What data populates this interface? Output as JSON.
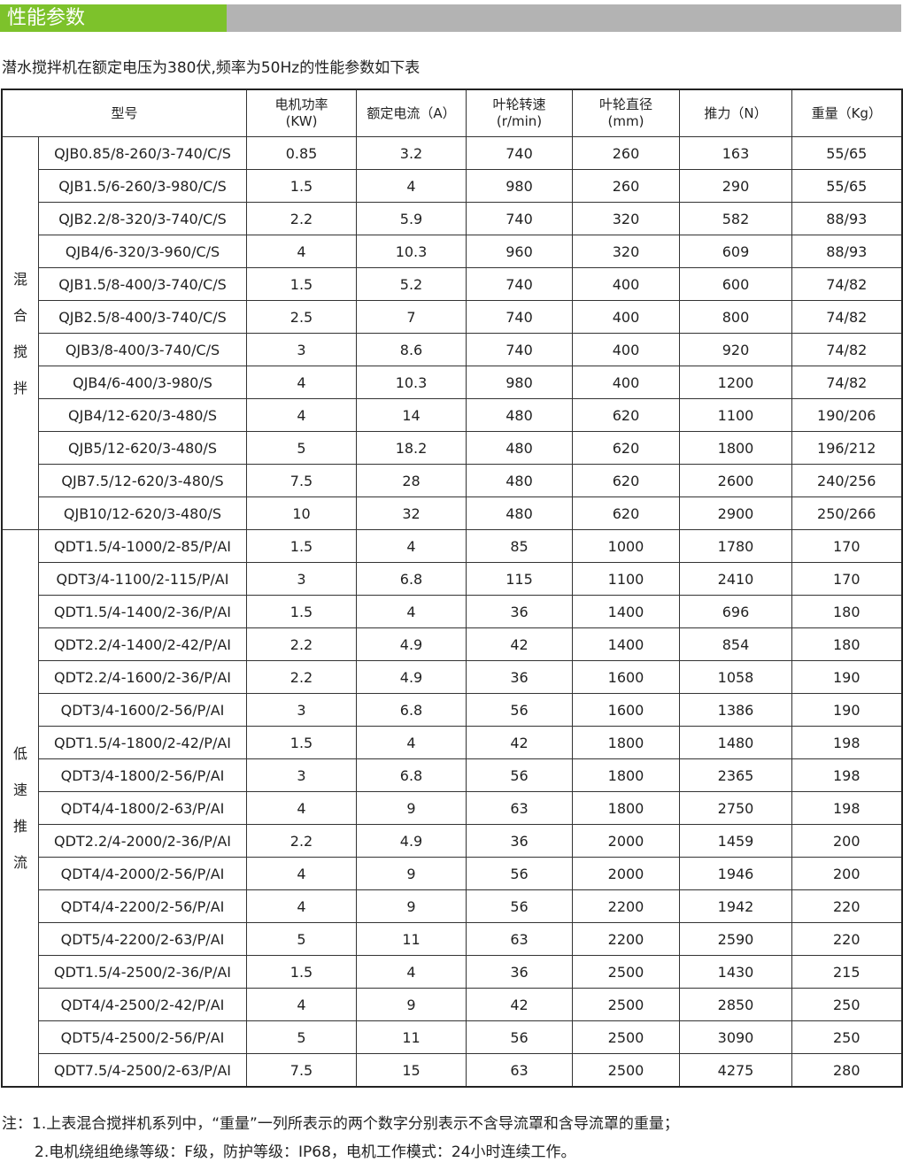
{
  "section_title": "性能参数",
  "intro": "潜水搅拌机在额定电压为380伏,频率为50Hz的性能参数如下表",
  "colors": {
    "title_green": "#7dc22b",
    "title_gray": "#b3b3b3"
  },
  "table": {
    "headers": {
      "model": "型号",
      "power": [
        "电机功率",
        "(KW)"
      ],
      "current": "额定电流（A）",
      "speed": [
        "叶轮转速",
        "(r/min)"
      ],
      "diameter": [
        "叶轮直径",
        "(mm)"
      ],
      "thrust": "推力（N）",
      "weight": "重量（Kg）"
    },
    "groups": [
      {
        "label": [
          "混",
          "合",
          "搅",
          "拌"
        ],
        "rows": [
          [
            "QJB0.85/8-260/3-740/C/S",
            "0.85",
            "3.2",
            "740",
            "260",
            "163",
            "55/65"
          ],
          [
            "QJB1.5/6-260/3-980/C/S",
            "1.5",
            "4",
            "980",
            "260",
            "290",
            "55/65"
          ],
          [
            "QJB2.2/8-320/3-740/C/S",
            "2.2",
            "5.9",
            "740",
            "320",
            "582",
            "88/93"
          ],
          [
            "QJB4/6-320/3-960/C/S",
            "4",
            "10.3",
            "960",
            "320",
            "609",
            "88/93"
          ],
          [
            "QJB1.5/8-400/3-740/C/S",
            "1.5",
            "5.2",
            "740",
            "400",
            "600",
            "74/82"
          ],
          [
            "QJB2.5/8-400/3-740/C/S",
            "2.5",
            "7",
            "740",
            "400",
            "800",
            "74/82"
          ],
          [
            "QJB3/8-400/3-740/C/S",
            "3",
            "8.6",
            "740",
            "400",
            "920",
            "74/82"
          ],
          [
            "QJB4/6-400/3-980/S",
            "4",
            "10.3",
            "980",
            "400",
            "1200",
            "74/82"
          ],
          [
            "QJB4/12-620/3-480/S",
            "4",
            "14",
            "480",
            "620",
            "1100",
            "190/206"
          ],
          [
            "QJB5/12-620/3-480/S",
            "5",
            "18.2",
            "480",
            "620",
            "1800",
            "196/212"
          ],
          [
            "QJB7.5/12-620/3-480/S",
            "7.5",
            "28",
            "480",
            "620",
            "2600",
            "240/256"
          ],
          [
            "QJB10/12-620/3-480/S",
            "10",
            "32",
            "480",
            "620",
            "2900",
            "250/266"
          ]
        ]
      },
      {
        "label": [
          "低",
          "速",
          "推",
          "流"
        ],
        "rows": [
          [
            "QDT1.5/4-1000/2-85/P/AI",
            "1.5",
            "4",
            "85",
            "1000",
            "1780",
            "170"
          ],
          [
            "QDT3/4-1100/2-115/P/AI",
            "3",
            "6.8",
            "115",
            "1100",
            "2410",
            "170"
          ],
          [
            "QDT1.5/4-1400/2-36/P/AI",
            "1.5",
            "4",
            "36",
            "1400",
            "696",
            "180"
          ],
          [
            "QDT2.2/4-1400/2-42/P/AI",
            "2.2",
            "4.9",
            "42",
            "1400",
            "854",
            "180"
          ],
          [
            "QDT2.2/4-1600/2-36/P/AI",
            "2.2",
            "4.9",
            "36",
            "1600",
            "1058",
            "190"
          ],
          [
            "QDT3/4-1600/2-56/P/AI",
            "3",
            "6.8",
            "56",
            "1600",
            "1386",
            "190"
          ],
          [
            "QDT1.5/4-1800/2-42/P/AI",
            "1.5",
            "4",
            "42",
            "1800",
            "1480",
            "198"
          ],
          [
            "QDT3/4-1800/2-56/P/AI",
            "3",
            "6.8",
            "56",
            "1800",
            "2365",
            "198"
          ],
          [
            "QDT4/4-1800/2-63/P/AI",
            "4",
            "9",
            "63",
            "1800",
            "2750",
            "198"
          ],
          [
            "QDT2.2/4-2000/2-36/P/AI",
            "2.2",
            "4.9",
            "36",
            "2000",
            "1459",
            "200"
          ],
          [
            "QDT4/4-2000/2-56/P/AI",
            "4",
            "9",
            "56",
            "2000",
            "1946",
            "200"
          ],
          [
            "QDT4/4-2200/2-56/P/AI",
            "4",
            "9",
            "56",
            "2200",
            "1942",
            "220"
          ],
          [
            "QDT5/4-2200/2-63/P/AI",
            "5",
            "11",
            "63",
            "2200",
            "2590",
            "220"
          ],
          [
            "QDT1.5/4-2500/2-36/P/AI",
            "1.5",
            "4",
            "36",
            "2500",
            "1430",
            "215"
          ],
          [
            "QDT4/4-2500/2-42/P/AI",
            "4",
            "9",
            "42",
            "2500",
            "2850",
            "250"
          ],
          [
            "QDT5/4-2500/2-56/P/AI",
            "5",
            "11",
            "56",
            "2500",
            "3090",
            "250"
          ],
          [
            "QDT7.5/4-2500/2-63/P/AI",
            "7.5",
            "15",
            "63",
            "2500",
            "4275",
            "280"
          ]
        ]
      }
    ]
  },
  "notes": [
    "注：1.上表混合搅拌机系列中，“重量”一列所表示的两个数字分别表示不含导流罩和含导流罩的重量；",
    "2.电机绕组绝缘等级：F级，防护等级：IP68，电机工作模式：24小时连续工作。"
  ]
}
